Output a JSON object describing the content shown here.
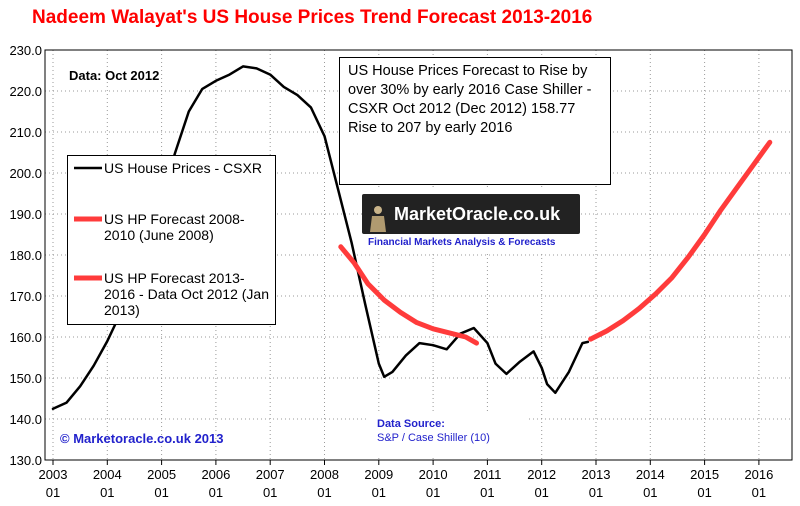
{
  "chart_data": {
    "type": "line",
    "title": "Nadeem Walayat's US House Prices Trend  Forecast 2013-2016",
    "xlabel": "",
    "ylabel": "",
    "ylim": [
      130,
      230
    ],
    "xlim": [
      2003.0,
      2016.3
    ],
    "yticks": [
      "130.0",
      "140.0",
      "150.0",
      "160.0",
      "170.0",
      "180.0",
      "190.0",
      "200.0",
      "210.0",
      "220.0",
      "230.0"
    ],
    "xticks": [
      {
        "year": "2003",
        "month": "01"
      },
      {
        "year": "2004",
        "month": "01"
      },
      {
        "year": "2005",
        "month": "01"
      },
      {
        "year": "2006",
        "month": "01"
      },
      {
        "year": "2007",
        "month": "01"
      },
      {
        "year": "2008",
        "month": "01"
      },
      {
        "year": "2009",
        "month": "01"
      },
      {
        "year": "2010",
        "month": "01"
      },
      {
        "year": "2011",
        "month": "01"
      },
      {
        "year": "2012",
        "month": "01"
      },
      {
        "year": "2013",
        "month": "01"
      },
      {
        "year": "2014",
        "month": "01"
      },
      {
        "year": "2015",
        "month": "01"
      },
      {
        "year": "2016",
        "month": "01"
      }
    ],
    "grid": true,
    "legend_position": "left",
    "series": [
      {
        "name": "US House Prices - CSXR",
        "color": "#000000",
        "x": [
          2003.0,
          2003.25,
          2003.5,
          2003.75,
          2004.0,
          2004.25,
          2004.5,
          2004.75,
          2005.0,
          2005.25,
          2005.5,
          2005.75,
          2006.0,
          2006.25,
          2006.5,
          2006.75,
          2007.0,
          2007.25,
          2007.5,
          2007.75,
          2008.0,
          2008.25,
          2008.5,
          2008.75,
          2009.0,
          2009.1,
          2009.25,
          2009.5,
          2009.75,
          2010.0,
          2010.25,
          2010.5,
          2010.75,
          2011.0,
          2011.15,
          2011.35,
          2011.6,
          2011.85,
          2012.0,
          2012.1,
          2012.25,
          2012.5,
          2012.75,
          2012.85
        ],
        "y": [
          142.5,
          144,
          148,
          153,
          159,
          166,
          174,
          184,
          194,
          205,
          215,
          220.5,
          222.5,
          224,
          226,
          225.5,
          224,
          221,
          219,
          216,
          209,
          196,
          183,
          168,
          153.5,
          150.3,
          151.5,
          155.5,
          158.5,
          158,
          157,
          160.8,
          162.2,
          158.5,
          153.5,
          151,
          154,
          156.5,
          152.5,
          148.5,
          146.4,
          151.5,
          158.5,
          158.8
        ]
      },
      {
        "name": "US HP Forecast 2008-2010 (June 2008)",
        "color": "#ff3b3b",
        "x": [
          2008.3,
          2008.55,
          2008.8,
          2009.1,
          2009.4,
          2009.7,
          2010.0,
          2010.3,
          2010.6,
          2010.8
        ],
        "y": [
          182,
          178,
          173,
          169,
          166,
          163.5,
          162,
          161,
          160,
          158.5
        ]
      },
      {
        "name": "US HP Forecast 2013-2016 - Data Oct 2012 (Jan 2013)",
        "color": "#ff3b3b",
        "x": [
          2012.9,
          2013.2,
          2013.5,
          2013.8,
          2014.1,
          2014.4,
          2014.7,
          2015.0,
          2015.3,
          2015.6,
          2015.9,
          2016.2
        ],
        "y": [
          159.5,
          161.5,
          164,
          167,
          170.5,
          174.5,
          179.5,
          185,
          191,
          196.5,
          202,
          207.5
        ]
      }
    ],
    "annotations": {
      "data_date": "Data:  Oct 2012",
      "forecast_note": "US House Prices Forecast to Rise by over 30% by early 2016 Case Shiller - CSXR Oct 2012 (Dec 2012) 158.77 Rise to 207 by early 2016",
      "source_label": "Data Source:",
      "source_value": "S&P / Case Shiller (10)",
      "copyright": "© Marketoracle.co.uk  2013"
    }
  },
  "logo": {
    "name": "MarketOracle.co.uk",
    "tagline": "Financial Markets Analysis & Forecasts"
  }
}
